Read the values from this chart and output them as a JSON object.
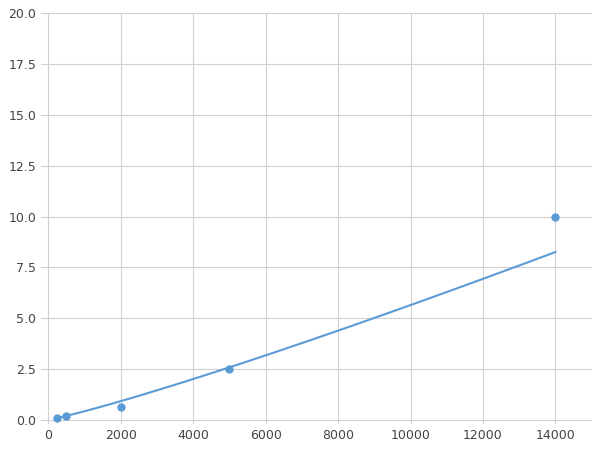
{
  "x_data": [
    250,
    500,
    2000,
    5000,
    14000
  ],
  "y_data": [
    0.1,
    0.2,
    0.65,
    2.5,
    10.0
  ],
  "line_color": "#5b9bd5",
  "marker_color": "#5b9bd5",
  "marker_size": 5,
  "xlim": [
    -200,
    15000
  ],
  "ylim": [
    -0.2,
    20.0
  ],
  "xticks": [
    0,
    2000,
    4000,
    6000,
    8000,
    10000,
    12000,
    14000
  ],
  "yticks": [
    0.0,
    2.5,
    5.0,
    7.5,
    10.0,
    12.5,
    15.0,
    17.5,
    20.0
  ],
  "grid_color": "#d0d0d0",
  "background_color": "#ffffff",
  "figure_facecolor": "#ffffff"
}
